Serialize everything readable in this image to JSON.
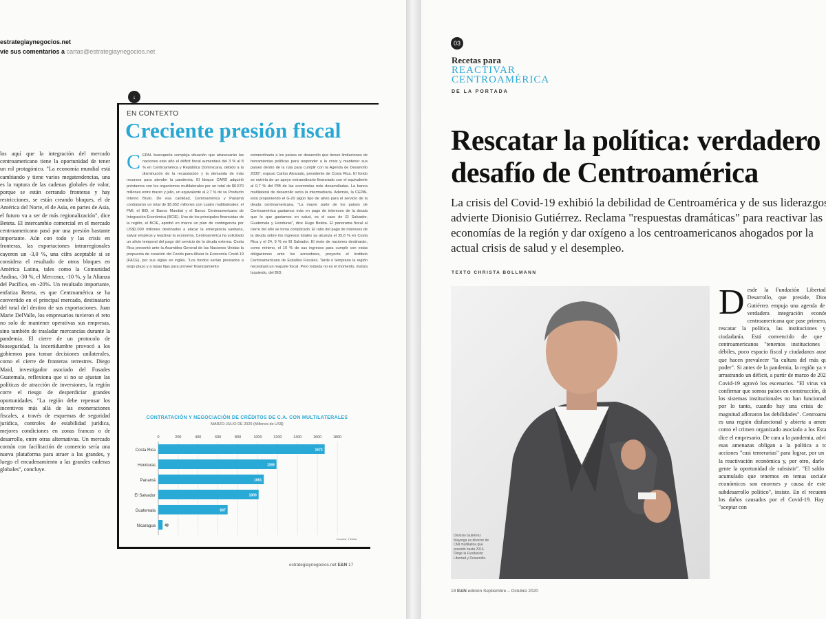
{
  "left_page": {
    "contact_line1": "estrategiaynegocios.net",
    "contact_line2_label": "víe sus comentarios a",
    "contact_line2_email": "cartas@estrategiaynegocios.net",
    "left_column_text": "los aquí que la integración del mercado centroamericano tiene la oportunidad de tener un rol protagónico. \"La economía mundial está cambiando y tiene varios megatendencias, una es la ruptura de las cadenas globales de valor, porque se están cerrando fronteras y hay restricciones, se están creando bloques, el de América del Norte, el de Asia, en partes de Asia, el futuro va a ser de más regionalización\", dice Beteta. El intercambio comercial en el mercado centroamericano pasó por una presión bastante importante. Aún con todo y las crisis en fronteras, las exportaciones intrarregionales cayeron un -3,0 %, una cifra aceptable si se considera el resultado de otros bloques en América Latina, tales como la Comunidad Andina, -30 %, el Mercosur, -10 %, y la Alianza del Pacífico, en -20%. Un resultado importante, enfatiza Beteta, es que Centroamérica se ha convertido en el principal mercado, destinatario del total del destino de sus exportaciones. Juan Marie DelValle, los empresarios tuvieron el reto no solo de mantener operativas sus empresas, sino también de trasladar mercancías durante la pandemia. El cierre de un protocolo de bioseguridad, la incertidumbre provocó a los gobiernos para tomar decisiones unilaterales, como el cierre de fronteras terrestres. Diego Maid, investigador asociado del Fusades Guatemala, reflexiona que si no se ajustan las políticas de atracción de inversiones, la región corre el riesgo de desperdiciar grandes oportunidades. \"La región debe repensar los incentivos más allá de las exoneraciones fiscales, a través de esquemas de seguridad jurídica, controles de estabilidad jurídica, mejores condiciones en zonas francas o de desarrollo, entre otras alternativas. Un mercado común con facilitación de comercio sería una nueva plataforma para atraer a las grandes, y luego el encadenamiento a las grandes cadenas globales\", concluye.",
    "section_badge": "↓",
    "kicker": "EN CONTEXTO",
    "headline": "Creciente presión fiscal",
    "dropcap": "C",
    "col1": "EPAL buscaporla compleja situación que atravesarán las naciones este año el déficit fiscal aumentará del 3 % al 8 % en Centroamérica y República Dominicana, debido a la disminución de la recaudación y la demanda de más recursos para atender la pandemia. El bloque CARD adquirió préstamos con los organismos multilaterales por un total de $6.570 millones entre marzo y julio, un equivalente al 2,7 % de su Producto Interno Bruto. De esa cantidad, Centroamérica y Panamá contrataron un total de $5.652 millones con cuatro multilaterales: el FMI, el BID, el Banco Mundial y el Banco Centroamericano de Integración Económica (BCIE). Uno de los principales financistas de la región, el BCIE, aprobó en marzo un plan de contingencia por US$2.000 millones destinados a atacar la emergencia sanitaria, salvar empleos y reactivar la economía. Centroamérica ha solicitado un alivio temporal del pago del servicio de la deuda externa. Costa Rica presentó ante la Asamblea General de las Naciones Unidas la propuesta de creación del Fondo para Aliviar la Economía Covid-19 (FACE), por sus siglas en inglés. \"Los fondos serían prestados a largo plazo y a tasas fijas para proveer financiamiento",
    "col2": "extraordinario a los países en desarrollo que tienen limitaciones de herramientas políticas para responder a la crisis y mantener sus países dentro de la ruta para cumplir con la Agenda de Desarrollo 2030\", expuso Carlos Alvarado, presidente de Costa Rica. El fondo se nutriría de un apoyo extraordinario financiado con el equivalente al 0,7 % del PIB de las economías más desarrolladas. La banca multilateral de desarrollo sería la intermediaria. Además, la CEPAL está proponiendo el G-20 algún tipo de alivio para el servicio de la deuda centroamericana. \"La mayor parte de los países de Centroamérica gastamos más en pago de intereses de la deuda que lo que gastamos en salud, es el caso de El Salvador, Guatemala y Honduras\", dice Hugo Beteta. El panorama fiscal al cierre del año se torna complicado. El ratio del pago de intereses de la deuda sobre los ingresos totales ya alcanza el 35,8 % en Costa Rica y el 24, 9 % en El Salvador. El resto de naciones destinarán, como mínimo, el 10 % de sus ingresos para cumplir con estas obligaciones ante los acreedores, proyecta el Instituto Centroamericano de Estudios Fiscales. Tarde o temprano la región necesitará un reajuste fiscal. Pero todavía no es el momento, matiza Izquierdo, del BID.",
    "chart_title": "CONTRATACIÓN Y NEGOCIACIÓN DE CRÉDITOS DE C.A. CON MULTILATERALES",
    "chart_subtitle": "MARZO-JULIO DE 2020 (Millones de US$)",
    "source": "Fuente: CEPAL",
    "folio_site": "estrategiaynegocios.net",
    "folio_brand": "E&N",
    "folio_page": "17"
  },
  "chart_data": {
    "type": "bar",
    "orientation": "horizontal",
    "title": "CONTRATACIÓN Y NEGOCIACIÓN DE CRÉDITOS DE C.A. CON MULTILATERALES",
    "subtitle": "MARZO-JULIO DE 2020 (Millones de US$)",
    "categories": [
      "Costa Rica",
      "Honduras",
      "Panamá",
      "El Salvador",
      "Guatemala",
      "Nicaragua"
    ],
    "values": [
      1673,
      1189,
      1061,
      1009,
      697,
      43
    ],
    "xlim": [
      0,
      1800
    ],
    "xticks": [
      0,
      200,
      400,
      600,
      800,
      1000,
      1200,
      1400,
      1600,
      1800
    ],
    "bar_color": "#29a9d6",
    "grid": true
  },
  "right_page": {
    "section_badge": "03",
    "section_line1": "Recetas para",
    "section_line2": "REACTIVAR",
    "section_line3": "CENTROAMÉRICA",
    "section_line4": "DE LA PORTADA",
    "headline_line1": "Rescatar la política: verdadero",
    "headline_line2": "desafío de Centroamérica",
    "deck_line1": "La crisis del Covid-19 exhibió la debilidad de Centroamérica y de sus liderazgos,",
    "deck_line2": "advierte Dionisio Gutiérrez. Reclama \"respuestas dramáticas\" para reactivar las",
    "deck_line3": "economías de la región y dar oxígeno a los centroamericanos ahogados por la",
    "deck_line4": "actual crisis de salud y el desempleo.",
    "byline": "TEXTO CHRISTA BOLLMANN",
    "photo_caption": "Dionisio Gutiérrez Mayorga es director de CMI multilatina que presidió hasta 2016. Dirige la Fundación Libertad y Desarrollo.",
    "dropcap": "D",
    "body": "esde la Fundación Libertad y Desarrollo, que preside, Dionisio Gutiérrez empuja una agenda de una verdadera integración económica centroamericana que pase primero, por rescatar la política, las instituciones y la ciudadanía. Está convencido de que los centroamericanos \"tenemos instituciones muy débiles, poco espacio fiscal y ciudadanos ausentes que hacen prevalecer \"la cultura del más quiero poder\". Si antes de la pandemia, la región ya venía arrastrando un déficit, a partir de marzo de 2020, el Covid-19 agravó los escenarios. \"El virus vino a confirmar que somos países en construcción, donde los sistemas institucionales no han funcionado, y por lo tanto, cuando hay una crisis de esta magnitud afloraron las debilidades\". Centroamérica es una región disfuncional y abierta a amenazas como el crimen organizado asociado a los Estados, dice el empresario. De cara a la pandemia, advierte, esas amenazas obligan a la política a tomar acciones \"casi temerarias\" para lograr, por un lado la reactivación económica y, por otro, darle a la gente la oportunidad de subsistir\". \"El saldo más acumulado que tenemos en temas sociales y económicos son enormes y causa de este tío subdesarrollo político\", insiste. En el recuento de los daños causados por el Covid-19. Hay que \"aceptar con",
    "folio_page": "18",
    "folio_brand": "E&N",
    "folio_edition": "edición Septiembre – Octubre 2020"
  }
}
